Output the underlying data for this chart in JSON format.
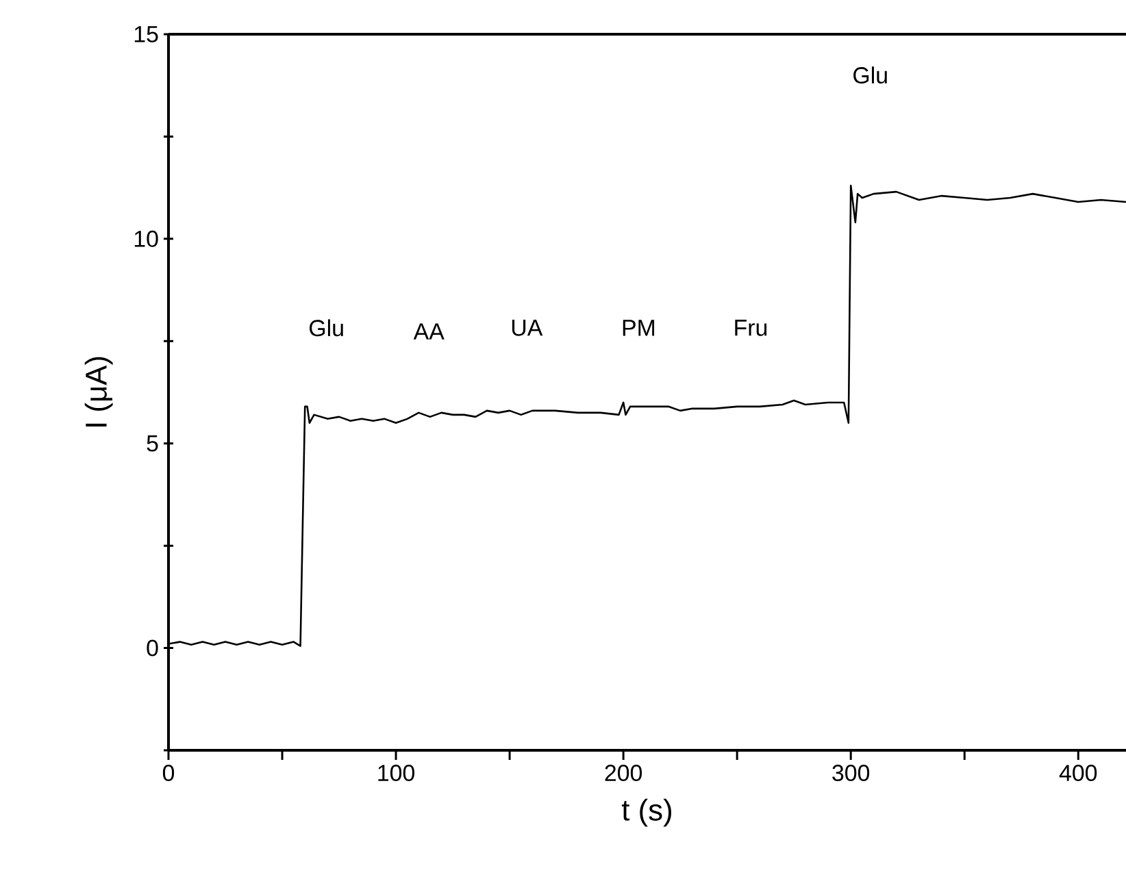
{
  "chart_data": {
    "type": "line",
    "xlabel": "t (s)",
    "ylabel": "I (μA)",
    "color": "#000000",
    "marker": "none",
    "line_style": "solid",
    "xlim": [
      0,
      421
    ],
    "ylim": [
      -2.5,
      15
    ],
    "xticks": [
      0,
      {
        "value": 50,
        "label": null
      },
      100,
      {
        "value": 150,
        "label": null
      },
      200,
      {
        "value": 250,
        "label": null
      },
      300,
      {
        "value": 350,
        "label": null
      },
      400
    ],
    "yticks": [
      {
        "value": -2.5,
        "label": null
      },
      0,
      {
        "value": 2.5,
        "label": null
      },
      5,
      {
        "value": 7.5,
        "label": null
      },
      10,
      {
        "value": 12.5,
        "label": null
      },
      15
    ],
    "x": [
      0,
      5,
      10,
      15,
      20,
      25,
      30,
      35,
      40,
      45,
      50,
      55,
      58,
      59,
      60,
      61,
      62,
      64,
      70,
      75,
      80,
      85,
      90,
      95,
      100,
      105,
      110,
      115,
      120,
      125,
      130,
      135,
      140,
      145,
      150,
      155,
      160,
      170,
      180,
      190,
      198,
      200,
      201,
      203,
      210,
      220,
      225,
      230,
      240,
      250,
      260,
      270,
      275,
      280,
      290,
      297,
      299,
      300,
      302,
      303,
      305,
      310,
      320,
      330,
      340,
      350,
      360,
      370,
      380,
      390,
      400,
      410,
      421
    ],
    "values": [
      0.1,
      0.15,
      0.08,
      0.15,
      0.08,
      0.15,
      0.08,
      0.15,
      0.08,
      0.15,
      0.08,
      0.15,
      0.05,
      3,
      5.9,
      5.9,
      5.5,
      5.7,
      5.6,
      5.65,
      5.55,
      5.6,
      5.55,
      5.6,
      5.5,
      5.6,
      5.75,
      5.65,
      5.75,
      5.7,
      5.7,
      5.65,
      5.8,
      5.75,
      5.8,
      5.7,
      5.8,
      5.8,
      5.75,
      5.75,
      5.7,
      6.0,
      5.7,
      5.9,
      5.9,
      5.9,
      5.8,
      5.85,
      5.85,
      5.9,
      5.9,
      5.95,
      6.05,
      5.95,
      6.0,
      6.0,
      5.5,
      11.3,
      10.4,
      11.1,
      11.0,
      11.1,
      11.15,
      10.95,
      11.05,
      11.0,
      10.95,
      11.0,
      11.1,
      11.0,
      10.9,
      10.95,
      10.9
    ],
    "annotations": [
      "Glu",
      "AA",
      "UA",
      "PM",
      "Fru",
      "Glu"
    ]
  }
}
